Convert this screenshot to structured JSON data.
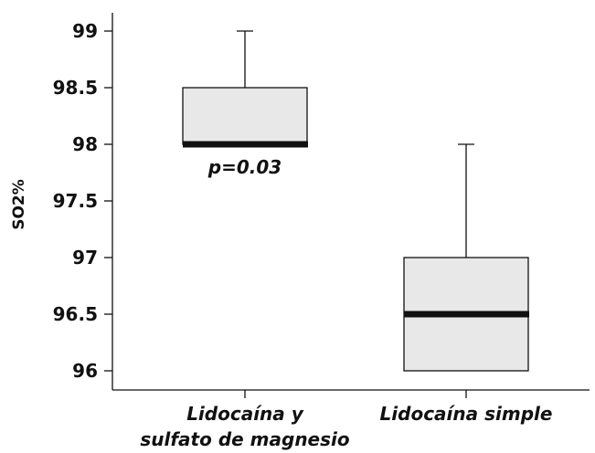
{
  "chart_data": {
    "type": "boxplot",
    "ylabel": "SO2%",
    "ylim": [
      95.9,
      99.15
    ],
    "yticks": [
      "99",
      "98.5",
      "98",
      "97.5",
      "97",
      "96.5",
      "96"
    ],
    "grid": false,
    "categories": [
      {
        "label_lines": [
          "Lidocaína y",
          "sulfato de magnesio"
        ],
        "min": 98,
        "q1": 98,
        "median": 98,
        "q3": 98.5,
        "max": 99
      },
      {
        "label_lines": [
          "Lidocaína simple"
        ],
        "min": 96,
        "q1": 96,
        "median": 96.5,
        "q3": 97,
        "max": 98
      }
    ],
    "annotation": {
      "text": "p=0.03",
      "near_category": 0,
      "below_value": 98
    },
    "box_fill": "#e8e8e8",
    "line_color": "#111111"
  }
}
